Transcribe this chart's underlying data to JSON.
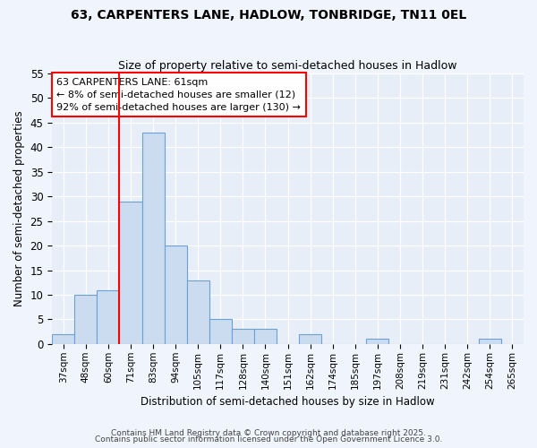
{
  "title": "63, CARPENTERS LANE, HADLOW, TONBRIDGE, TN11 0EL",
  "subtitle": "Size of property relative to semi-detached houses in Hadlow",
  "xlabel": "Distribution of semi-detached houses by size in Hadlow",
  "ylabel": "Number of semi-detached properties",
  "bins": [
    "37sqm",
    "48sqm",
    "60sqm",
    "71sqm",
    "83sqm",
    "94sqm",
    "105sqm",
    "117sqm",
    "128sqm",
    "140sqm",
    "151sqm",
    "162sqm",
    "174sqm",
    "185sqm",
    "197sqm",
    "208sqm",
    "219sqm",
    "231sqm",
    "242sqm",
    "254sqm",
    "265sqm"
  ],
  "values": [
    2,
    10,
    11,
    29,
    43,
    20,
    13,
    5,
    3,
    3,
    0,
    2,
    0,
    0,
    1,
    0,
    0,
    0,
    0,
    1,
    0
  ],
  "bar_color": "#ccdcf0",
  "bar_edge_color": "#6aa0d4",
  "red_line_bin_index": 2,
  "annotation_title": "63 CARPENTERS LANE: 61sqm",
  "annotation_line1": "← 8% of semi-detached houses are smaller (12)",
  "annotation_line2": "92% of semi-detached houses are larger (130) →",
  "annotation_box_color": "white",
  "annotation_box_edge_color": "red",
  "footer1": "Contains HM Land Registry data © Crown copyright and database right 2025.",
  "footer2": "Contains public sector information licensed under the Open Government Licence 3.0.",
  "ylim": [
    0,
    55
  ],
  "yticks": [
    0,
    5,
    10,
    15,
    20,
    25,
    30,
    35,
    40,
    45,
    50,
    55
  ],
  "fig_bg": "#f0f4fc",
  "plot_bg": "#e8eef8"
}
